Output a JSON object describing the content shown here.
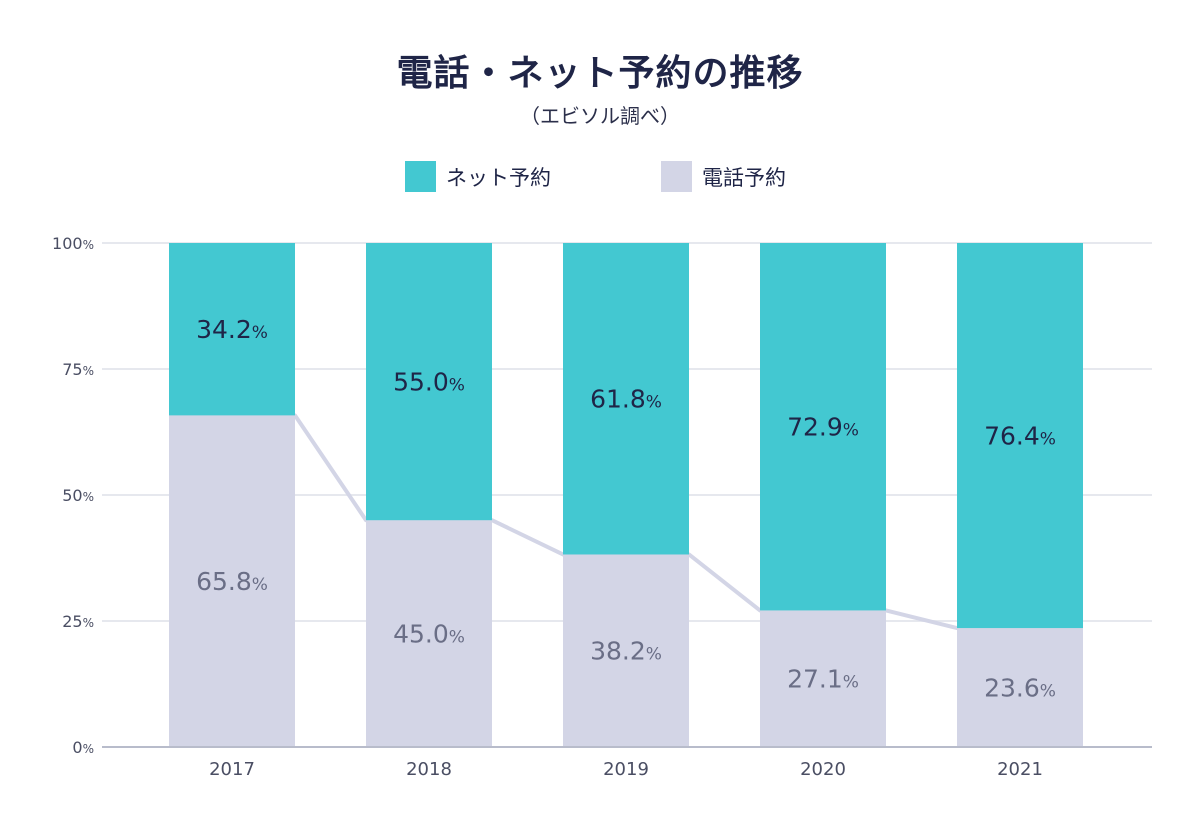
{
  "title": "電話・ネット予約の推移",
  "subtitle": "（エビソル調べ）",
  "colors": {
    "net": "#43c8d1",
    "tel": "#d3d5e6",
    "grid": "#e6e8ee",
    "axis": "#b8bccb",
    "connector": "#d3d5e6"
  },
  "legend": [
    {
      "key": "net",
      "label": "ネット予約"
    },
    {
      "key": "tel",
      "label": "電話予約"
    }
  ],
  "chart_data": {
    "type": "bar",
    "stacked": true,
    "categories": [
      "2017",
      "2018",
      "2019",
      "2020",
      "2021"
    ],
    "series": [
      {
        "name": "電話予約",
        "values": [
          65.8,
          45.0,
          38.2,
          27.1,
          23.6
        ]
      },
      {
        "name": "ネット予約",
        "values": [
          34.2,
          55.0,
          61.8,
          72.9,
          76.4
        ]
      }
    ],
    "value_labels": {
      "tel": [
        "65.8",
        "45.0",
        "38.2",
        "27.1",
        "23.6"
      ],
      "net": [
        "34.2",
        "55.0",
        "61.8",
        "72.9",
        "76.4"
      ]
    },
    "value_unit": "%",
    "yticks": [
      "0%",
      "25%",
      "50%",
      "75%",
      "100%"
    ],
    "ylim": [
      0,
      100
    ],
    "grid": true,
    "legend_position": "top-center"
  }
}
